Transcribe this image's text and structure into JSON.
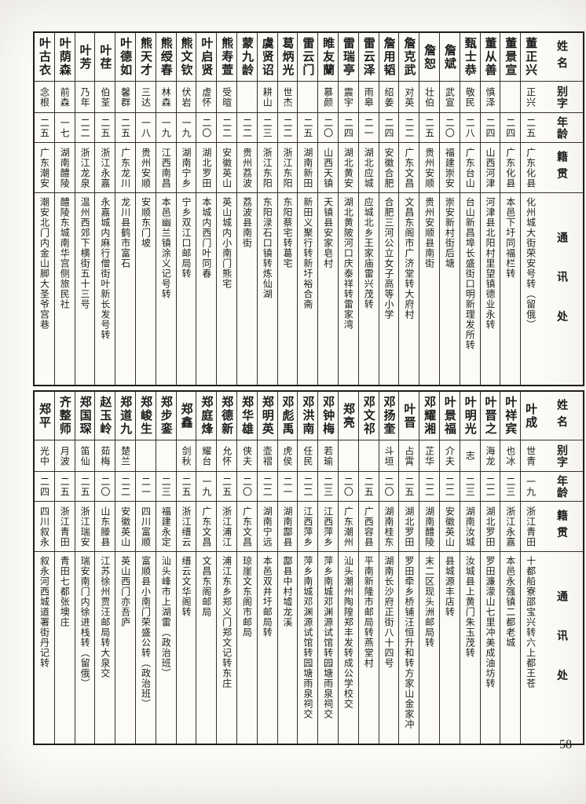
{
  "page": {
    "number": "58"
  },
  "row_headers": [
    "姓名",
    "别字",
    "年龄",
    "籍贯",
    "通讯处"
  ],
  "tables": [
    {
      "entries": [
        {
          "name": "董正兴",
          "zi": "正兴",
          "age": "二五",
          "native": "广东化县",
          "address": "化州城大街荣安号转（留俄）"
        },
        {
          "name": "董景宣",
          "zi": "",
          "age": "二四",
          "native": "广东化县",
          "address": "本邑下圩同福栏转"
        },
        {
          "name": "董从善",
          "zi": "慎泽",
          "age": "二四",
          "native": "山西河津",
          "address": "河津县北阳村里望镇德业永转"
        },
        {
          "name": "甄士恭",
          "zi": "敬民",
          "age": "二八",
          "native": "广东台山",
          "address": "台山新昌埠长盛街口明新理发所转"
        },
        {
          "name": "詹斌",
          "zi": "武宣",
          "age": "二〇",
          "native": "福建崇安",
          "address": "崇安新村街后塘"
        },
        {
          "name": "詹恕",
          "zi": "壮伯",
          "age": "二五",
          "native": "贵州安顺",
          "address": "贵州安顺县南街"
        },
        {
          "name": "詹克武",
          "zi": "对英",
          "age": "二二",
          "native": "广东文昌",
          "address": "文昌东阁市广济堂转大府村"
        },
        {
          "name": "詹用韬",
          "zi": "绍姜",
          "age": "二四",
          "native": "安徽合肥",
          "address": "合肥三河公立女子高等小学"
        },
        {
          "name": "雷云泽",
          "zi": "雨皋",
          "age": "二一",
          "native": "湖北应城",
          "address": "应城北乡王家庙雷兴茂转"
        },
        {
          "name": "雷瑞亭",
          "zi": "震宇",
          "age": "二四",
          "native": "湖北黄安",
          "address": "湖北黄陂河口庆泰祥转雷家湾"
        },
        {
          "name": "睢友蘭",
          "zi": "慕颜",
          "age": "二〇",
          "native": "山西天镇",
          "address": "天镇县安家皂村"
        },
        {
          "name": "雷云门",
          "zi": "",
          "age": "二五",
          "native": "湖南新田",
          "address": "新田义聚行转新圩裕合斋"
        },
        {
          "name": "葛炳光",
          "zi": "世杰",
          "age": "二二",
          "native": "浙江东阳",
          "address": "东阳蔡宅转葛宅"
        },
        {
          "name": "虞贤诏",
          "zi": "耕山",
          "age": "二三",
          "native": "浙江东阳",
          "address": "东阳渌石口镇转炼仙湖"
        },
        {
          "name": "蒙九龄",
          "zi": "",
          "age": "二二",
          "native": "贵州荔波",
          "address": "荔波县南街"
        },
        {
          "name": "熊寿萱",
          "zi": "受暄",
          "age": "二二",
          "native": "安徽英山",
          "address": "英山城内小南门熊宅"
        },
        {
          "name": "叶启贤",
          "zi": "虚怀",
          "age": "二〇",
          "native": "湖北罗田",
          "address": "本城内西门叶同春"
        },
        {
          "name": "熊文钦",
          "zi": "伏岩",
          "age": "一九",
          "native": "湖南宁乡",
          "address": "宁乡双江口邮局转"
        },
        {
          "name": "熊绶春",
          "zi": "林森",
          "age": "一九",
          "native": "江西南昌",
          "address": "本邑幽兰镇涂义记号转"
        },
        {
          "name": "熊天才",
          "zi": "三达",
          "age": "一八",
          "native": "贵州安顺",
          "address": "安顺东门坡"
        },
        {
          "name": "叶德如",
          "zi": "馨群",
          "age": "二五",
          "native": "广东龙川",
          "address": "龙川县鹤市富石"
        },
        {
          "name": "叶荏",
          "zi": "伯荃",
          "age": "二五",
          "native": "浙江永嘉",
          "address": "永嘉城内麻行僧街叶新长发号转"
        },
        {
          "name": "叶芳",
          "zi": "乃年",
          "age": "二二",
          "native": "浙江龙泉",
          "address": "温州西郊下横街五十三号"
        },
        {
          "name": "叶荫森",
          "zi": "前森",
          "age": "一七",
          "native": "湖南醴陵",
          "address": "醴陵东城南华宫侧旅民社"
        },
        {
          "name": "叶古衣",
          "zi": "念根",
          "age": "二五",
          "native": "广东潮安",
          "address": "潮安北门内金山脚大圣爷宫巷"
        }
      ]
    },
    {
      "entries": [
        {
          "name": "叶成",
          "zi": "世青",
          "age": "一九",
          "native": "浙江青田",
          "address": "十都船寮邵宝兴转六上都王苍"
        },
        {
          "name": "叶祥宾",
          "zi": "也冰",
          "age": "二三",
          "native": "浙江永嘉",
          "address": "本邑永强镇二都老城"
        },
        {
          "name": "叶晋之",
          "zi": "海龙",
          "age": "二二",
          "native": "湖北罗田",
          "address": "罗田濂濛山七里冲美成油坊转"
        },
        {
          "name": "叶明光",
          "zi": "志",
          "age": "二三",
          "native": "湖南汝城",
          "address": "汝城县上黄门朱玉茂转"
        },
        {
          "name": "叶景福",
          "zi": "介夫",
          "age": "二二",
          "native": "安徽英山",
          "address": "县城源丰店转"
        },
        {
          "name": "邓耀湘",
          "zi": "芷华",
          "age": "二二",
          "native": "湖南醴陵",
          "address": "末二区现头洲邮局转"
        },
        {
          "name": "叶晋",
          "zi": "占霄",
          "age": "二五",
          "native": "湖北罗田",
          "address": "罗田牵乡桥铺汪恒升和转方家山金家冲"
        },
        {
          "name": "邓扬奎",
          "zi": "斗垣",
          "age": "二〇",
          "native": "湖南桂东",
          "address": "湖南长沙府正街八十四号"
        },
        {
          "name": "邓文祁",
          "zi": "",
          "age": "二五",
          "native": "广西容县",
          "address": "平南新隆市邮局转燕堂村"
        },
        {
          "name": "郑亮",
          "zi": "",
          "age": "二〇",
          "native": "广东潮州",
          "address": "汕头潮州陶隍郑丰发转成公学校交"
        },
        {
          "name": "邓钟梅",
          "zi": "若瑜",
          "age": "二三",
          "native": "江西萍乡",
          "address": "萍乡南城邓渊源试馆转园塘雨泉祠交"
        },
        {
          "name": "邓洪南",
          "zi": "任民",
          "age": "二二",
          "native": "江西萍乡",
          "address": "萍乡南城邓渊源试馆转园塘雨泉祠交"
        },
        {
          "name": "邓彪禹",
          "zi": "虎侯",
          "age": "二一",
          "native": "湖南酃县",
          "address": "酃县中村墟龙溪"
        },
        {
          "name": "郑明英",
          "zi": "壶褶",
          "age": "二二",
          "native": "湖南宁远",
          "address": "本邑双井圩邮局转"
        },
        {
          "name": "郑华雄",
          "zi": "侠夫",
          "age": "二〇",
          "native": "广东文昌",
          "address": "琼崖文东阁市邮局"
        },
        {
          "name": "郑德新",
          "zi": "允怀",
          "age": "二五",
          "native": "浙江浦江",
          "address": "浦江东乡郑义门郑文记转东庄"
        },
        {
          "name": "郑庭烽",
          "zi": "耀台",
          "age": "一九",
          "native": "广东文昌",
          "address": "文昌东阁邮局"
        },
        {
          "name": "郑鑫",
          "zi": "剑秋",
          "age": "二五",
          "native": "浙江缙云",
          "address": "缙云文华阁转"
        },
        {
          "name": "郑步銮",
          "zi": "",
          "age": "二三",
          "native": "福建永定",
          "address": "汕头峰市上湖雷（政治班）"
        },
        {
          "name": "郑峻生",
          "zi": "",
          "age": "二一",
          "native": "四川富顺",
          "address": "富顺县小南门荣盛公转（政治班）"
        },
        {
          "name": "郑道九",
          "zi": "楚兰",
          "age": "二二",
          "native": "安徽英山",
          "address": "英山西门亦吾庐"
        },
        {
          "name": "赵玉岭",
          "zi": "茹梅",
          "age": "二〇",
          "native": "山东滕县",
          "address": "江苏徐州贾汪邮局转大泉交"
        },
        {
          "name": "郑国琛",
          "zi": "笛仙",
          "age": "二五",
          "native": "浙江瑞安",
          "address": "瑞安南门内徐进栈转（留俄）"
        },
        {
          "name": "齐整师",
          "zi": "月波",
          "age": "二五",
          "native": "浙江青田",
          "address": "青田七都张墺庄"
        },
        {
          "name": "郑平",
          "zi": "光中",
          "age": "二四",
          "native": "四川叙永",
          "address": "叙永河西城道署街丹记转"
        }
      ]
    }
  ]
}
